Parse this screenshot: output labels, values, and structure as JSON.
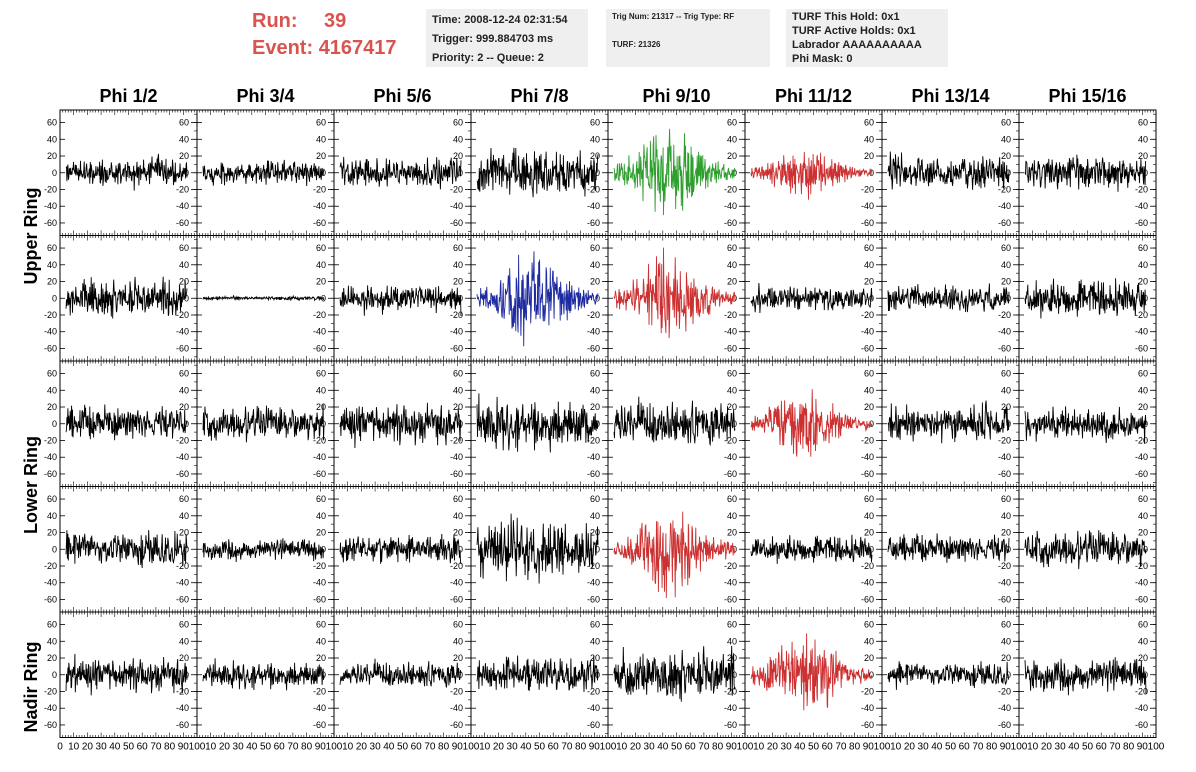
{
  "header": {
    "run_label": "Run:",
    "run_value": "39",
    "event_label": "Event:",
    "event_value": "4167417",
    "time": "Time: 2008-12-24 02:31:54",
    "trigger": "Trigger: 999.884703 ms",
    "priority": "Priority: 2 -- Queue: 2",
    "trig_num": "Trig Num: 21317 -- Trig Type: RF",
    "turf": "TURF: 21326",
    "turf_this_hold": "TURF This Hold: 0x1",
    "turf_active_holds": "TURF Active Holds: 0x1",
    "labrador": "Labrador AAAAAAAAAA",
    "phi_mask": "Phi Mask: 0",
    "accent_color": "#d9534f"
  },
  "columns": [
    "Phi 1/2",
    "Phi 3/4",
    "Phi 5/6",
    "Phi 7/8",
    "Phi 9/10",
    "Phi 11/12",
    "Phi 13/14",
    "Phi 15/16"
  ],
  "row_groups": [
    "Upper Ring",
    "Lower Ring",
    "Nadir Ring"
  ],
  "chart_data": {
    "type": "line",
    "xlim": [
      0,
      100
    ],
    "ylim": [
      -75,
      75
    ],
    "x_ticks": [
      "0",
      "10",
      "20",
      "30",
      "40",
      "50",
      "60",
      "70",
      "80",
      "90",
      "100"
    ],
    "y_ticks": [
      "60",
      "40",
      "20",
      "0",
      "-20",
      "-40",
      "-60"
    ],
    "grid": false,
    "series_colors": {
      "black": "#000000",
      "green": "#2e9e2e",
      "red": "#cc3030",
      "blue": "#1e2aa0"
    },
    "panels": [
      [
        {
          "color": "black",
          "amp": 14,
          "env": "flat"
        },
        {
          "color": "black",
          "amp": 12,
          "env": "flat"
        },
        {
          "color": "black",
          "amp": 14,
          "env": "flat"
        },
        {
          "color": "black",
          "amp": 22,
          "env": "flat"
        },
        {
          "color": "green",
          "amp": 40,
          "env": "burst"
        },
        {
          "color": "red",
          "amp": 22,
          "env": "burst"
        },
        {
          "color": "black",
          "amp": 16,
          "env": "flat"
        },
        {
          "color": "black",
          "amp": 16,
          "env": "flat"
        }
      ],
      [
        {
          "color": "black",
          "amp": 18,
          "env": "flat"
        },
        {
          "color": "black",
          "amp": 2,
          "env": "flat"
        },
        {
          "color": "black",
          "amp": 13,
          "env": "flat"
        },
        {
          "color": "blue",
          "amp": 38,
          "env": "burst"
        },
        {
          "color": "red",
          "amp": 38,
          "env": "burst"
        },
        {
          "color": "black",
          "amp": 13,
          "env": "flat"
        },
        {
          "color": "black",
          "amp": 14,
          "env": "flat"
        },
        {
          "color": "black",
          "amp": 18,
          "env": "flat"
        }
      ],
      [
        {
          "color": "black",
          "amp": 17,
          "env": "flat"
        },
        {
          "color": "black",
          "amp": 16,
          "env": "flat"
        },
        {
          "color": "black",
          "amp": 20,
          "env": "flat"
        },
        {
          "color": "black",
          "amp": 24,
          "env": "flat"
        },
        {
          "color": "black",
          "amp": 22,
          "env": "flat"
        },
        {
          "color": "red",
          "amp": 30,
          "env": "burst"
        },
        {
          "color": "black",
          "amp": 18,
          "env": "flat"
        },
        {
          "color": "black",
          "amp": 16,
          "env": "flat"
        }
      ],
      [
        {
          "color": "black",
          "amp": 17,
          "env": "flat"
        },
        {
          "color": "black",
          "amp": 10,
          "env": "flat"
        },
        {
          "color": "black",
          "amp": 14,
          "env": "flat"
        },
        {
          "color": "black",
          "amp": 30,
          "env": "flat"
        },
        {
          "color": "red",
          "amp": 40,
          "env": "burst"
        },
        {
          "color": "black",
          "amp": 13,
          "env": "flat"
        },
        {
          "color": "black",
          "amp": 14,
          "env": "flat"
        },
        {
          "color": "black",
          "amp": 17,
          "env": "flat"
        }
      ],
      [
        {
          "color": "black",
          "amp": 17,
          "env": "flat"
        },
        {
          "color": "black",
          "amp": 13,
          "env": "flat"
        },
        {
          "color": "black",
          "amp": 13,
          "env": "flat"
        },
        {
          "color": "black",
          "amp": 18,
          "env": "flat"
        },
        {
          "color": "black",
          "amp": 24,
          "env": "flat"
        },
        {
          "color": "red",
          "amp": 38,
          "env": "burst"
        },
        {
          "color": "black",
          "amp": 12,
          "env": "flat"
        },
        {
          "color": "black",
          "amp": 16,
          "env": "flat"
        }
      ]
    ]
  }
}
